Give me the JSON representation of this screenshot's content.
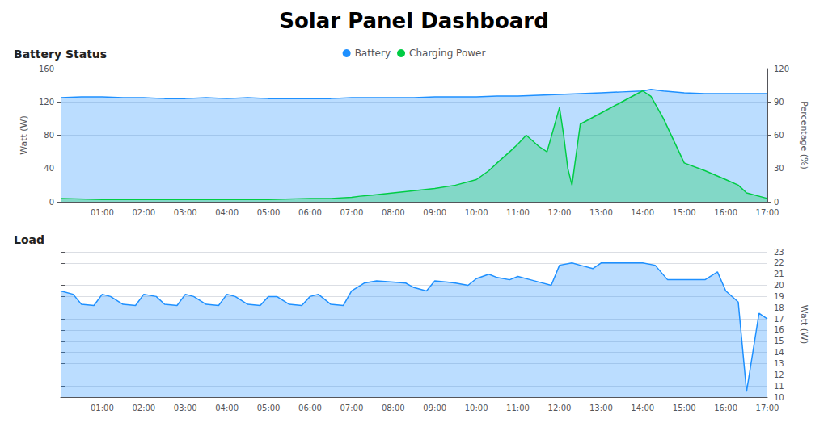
{
  "title": "Solar Panel Dashboard",
  "chart_data": [
    {
      "type": "area",
      "title": "Battery Status",
      "ylabel": "Watt (W)",
      "y2label": "Percentage (%)",
      "xlim": [
        0,
        17
      ],
      "xticks": [
        {
          "value": 1,
          "label": "01:00"
        },
        {
          "value": 2,
          "label": "02:00"
        },
        {
          "value": 3,
          "label": "03:00"
        },
        {
          "value": 4,
          "label": "04:00"
        },
        {
          "value": 5,
          "label": "05:00"
        },
        {
          "value": 6,
          "label": "06:00"
        },
        {
          "value": 7,
          "label": "07:00"
        },
        {
          "value": 8,
          "label": "08:00"
        },
        {
          "value": 9,
          "label": "09:00"
        },
        {
          "value": 10,
          "label": "10:00"
        },
        {
          "value": 11,
          "label": "11:00"
        },
        {
          "value": 12,
          "label": "12:00"
        },
        {
          "value": 13,
          "label": "13:00"
        },
        {
          "value": 14,
          "label": "14:00"
        },
        {
          "value": 15,
          "label": "15:00"
        },
        {
          "value": 16,
          "label": "16:00"
        },
        {
          "value": 17,
          "label": "17:00"
        }
      ],
      "ylim": [
        0,
        160
      ],
      "yticks": [
        0,
        40,
        80,
        120,
        160
      ],
      "y2lim": [
        0,
        120
      ],
      "y2ticks": [
        0,
        30,
        60,
        90,
        120
      ],
      "grid": true,
      "legend": "top",
      "series": [
        {
          "name": "Battery",
          "color": "#1e90ff",
          "x": [
            0,
            0.5,
            1,
            1.5,
            2,
            2.5,
            3,
            3.5,
            4,
            4.5,
            5,
            5.5,
            6,
            6.5,
            7,
            7.5,
            8,
            8.5,
            9,
            9.5,
            10,
            10.5,
            11,
            11.5,
            12,
            12.5,
            13,
            13.5,
            14,
            14.2,
            14.5,
            15,
            15.5,
            16,
            16.5,
            17
          ],
          "values": [
            125,
            126,
            126,
            125,
            125,
            124,
            124,
            125,
            124,
            125,
            124,
            124,
            124,
            124,
            125,
            125,
            125,
            125,
            126,
            126,
            126,
            127,
            127,
            128,
            129,
            130,
            131,
            132,
            133,
            135,
            133,
            131,
            130,
            130,
            130,
            130
          ]
        },
        {
          "name": "Charging Power",
          "color": "#00cc44",
          "axis": "y2",
          "x": [
            0,
            1,
            2,
            3,
            4,
            5,
            6,
            6.5,
            7,
            7.2,
            7.5,
            8,
            8.5,
            9,
            9.5,
            10,
            10.3,
            10.5,
            10.8,
            11,
            11.2,
            11.5,
            11.7,
            12,
            12.1,
            12.2,
            12.3,
            12.5,
            13,
            13.5,
            14,
            14.2,
            14.5,
            15,
            15.5,
            16,
            16.3,
            16.5,
            17
          ],
          "values": [
            3,
            2,
            2,
            2,
            2,
            2,
            3,
            3,
            4,
            5,
            6,
            8,
            10,
            12,
            15,
            20,
            28,
            35,
            45,
            52,
            60,
            50,
            45,
            85,
            60,
            30,
            15,
            70,
            80,
            90,
            100,
            95,
            75,
            35,
            28,
            20,
            15,
            8,
            3
          ]
        }
      ]
    },
    {
      "type": "area",
      "title": "Load",
      "y2label": "Watt (W)",
      "xlim": [
        0,
        17
      ],
      "xticks": [
        {
          "value": 1,
          "label": "01:00"
        },
        {
          "value": 2,
          "label": "02:00"
        },
        {
          "value": 3,
          "label": "03:00"
        },
        {
          "value": 4,
          "label": "04:00"
        },
        {
          "value": 5,
          "label": "05:00"
        },
        {
          "value": 6,
          "label": "06:00"
        },
        {
          "value": 7,
          "label": "07:00"
        },
        {
          "value": 8,
          "label": "08:00"
        },
        {
          "value": 9,
          "label": "09:00"
        },
        {
          "value": 10,
          "label": "10:00"
        },
        {
          "value": 11,
          "label": "11:00"
        },
        {
          "value": 12,
          "label": "12:00"
        },
        {
          "value": 13,
          "label": "13:00"
        },
        {
          "value": 14,
          "label": "14:00"
        },
        {
          "value": 15,
          "label": "15:00"
        },
        {
          "value": 16,
          "label": "16:00"
        },
        {
          "value": 17,
          "label": "17:00"
        }
      ],
      "y2lim": [
        10,
        23
      ],
      "y2ticks": [
        10,
        11,
        12,
        13,
        14,
        15,
        16,
        17,
        18,
        19,
        20,
        21,
        22,
        23
      ],
      "grid": true,
      "series": [
        {
          "color": "#1e90ff",
          "axis": "y2",
          "x": [
            0,
            0.3,
            0.5,
            0.8,
            1,
            1.2,
            1.5,
            1.8,
            2,
            2.3,
            2.5,
            2.8,
            3,
            3.2,
            3.5,
            3.8,
            4,
            4.2,
            4.5,
            4.8,
            5,
            5.2,
            5.5,
            5.8,
            6,
            6.2,
            6.5,
            6.8,
            7,
            7.3,
            7.6,
            8,
            8.3,
            8.5,
            8.8,
            9,
            9.3,
            9.5,
            9.8,
            10,
            10.3,
            10.5,
            10.8,
            11,
            11.3,
            11.5,
            11.8,
            12,
            12.3,
            12.5,
            12.8,
            13,
            13.3,
            13.5,
            13.8,
            14,
            14.3,
            14.6,
            14.8,
            15,
            15.3,
            15.5,
            15.8,
            16,
            16.3,
            16.5,
            16.8,
            17
          ],
          "values": [
            19.5,
            19.2,
            18.3,
            18.2,
            19.2,
            19.0,
            18.3,
            18.2,
            19.2,
            19.0,
            18.3,
            18.2,
            19.2,
            19.0,
            18.3,
            18.2,
            19.2,
            19.0,
            18.3,
            18.2,
            19.0,
            19.0,
            18.3,
            18.2,
            19.0,
            19.2,
            18.3,
            18.2,
            19.5,
            20.2,
            20.4,
            20.3,
            20.2,
            19.8,
            19.5,
            20.4,
            20.3,
            20.2,
            20.0,
            20.6,
            21.0,
            20.7,
            20.5,
            20.8,
            20.5,
            20.3,
            20.0,
            21.8,
            22.0,
            21.8,
            21.5,
            22.0,
            22.0,
            22.0,
            22.0,
            22.0,
            21.8,
            20.5,
            20.5,
            20.5,
            20.5,
            20.5,
            21.2,
            19.5,
            18.5,
            10.5,
            17.5,
            17.0
          ]
        }
      ]
    }
  ]
}
